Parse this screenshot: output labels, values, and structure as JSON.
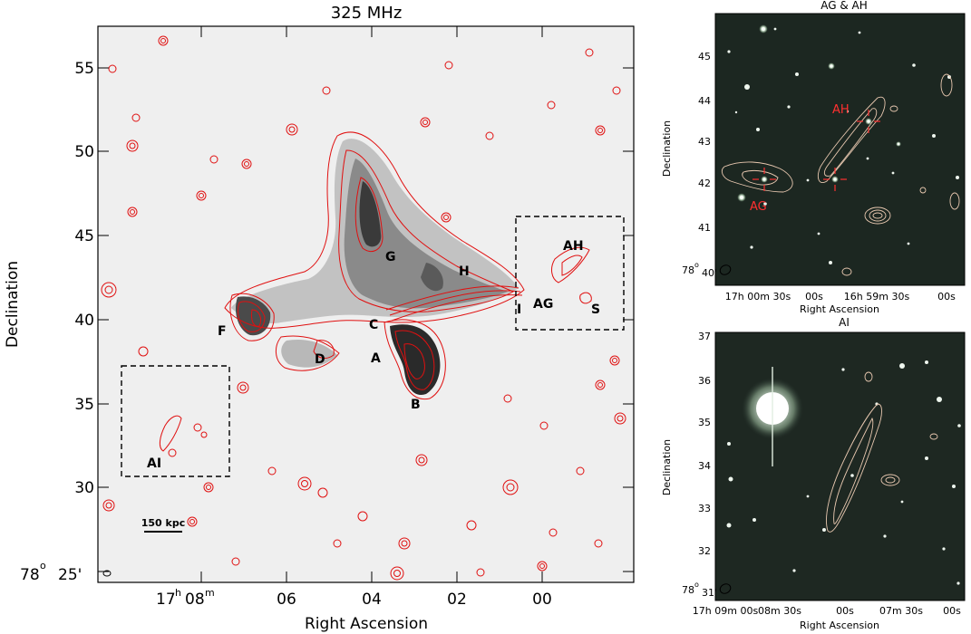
{
  "main_panel": {
    "title": "325 MHz",
    "ylabel": "Declination",
    "xlabel": "Right Ascension",
    "y_ticks": [
      {
        "value": 55,
        "label": "55"
      },
      {
        "value": 50,
        "label": "50"
      },
      {
        "value": 45,
        "label": "45"
      },
      {
        "value": 40,
        "label": "40"
      },
      {
        "value": 35,
        "label": "35"
      },
      {
        "value": 30,
        "label": "30"
      }
    ],
    "y_origin": {
      "deg": "78",
      "deg_sym": "o",
      "min": "25'"
    },
    "x_ticks": [
      {
        "h": "17",
        "m": "08",
        "label": ""
      },
      {
        "label": "06"
      },
      {
        "label": "04"
      },
      {
        "label": "02"
      },
      {
        "label": "00"
      }
    ],
    "scalebar_label": "150 kpc",
    "source_labels": [
      "G",
      "H",
      "AH",
      "F",
      "C",
      "I",
      "AG",
      "S",
      "D",
      "A",
      "B",
      "AI"
    ],
    "contour_color": "#e01010"
  },
  "panel_ag_ah": {
    "title": "AG & AH",
    "ylabel": "Declination",
    "xlabel": "Right Ascension",
    "y_ticks": [
      "45",
      "44",
      "43",
      "42",
      "41"
    ],
    "y_origin": {
      "deg": "78",
      "deg_sym": "o",
      "min": "40'"
    },
    "x_ticks": [
      "17h 00m 30s",
      "00s",
      "16h 59m 30s",
      "00s"
    ],
    "labels": [
      "AH",
      "AG"
    ]
  },
  "panel_ai": {
    "title": "AI",
    "ylabel": "Declination",
    "xlabel": "Right Ascension",
    "y_ticks": [
      "37",
      "36",
      "35",
      "34",
      "33",
      "32"
    ],
    "y_origin": {
      "deg": "78",
      "deg_sym": "o",
      "min": "31'"
    },
    "x_ticks": [
      "17h 09m 00s",
      "08m 30s",
      "00s",
      "07m 30s",
      "00s"
    ]
  }
}
